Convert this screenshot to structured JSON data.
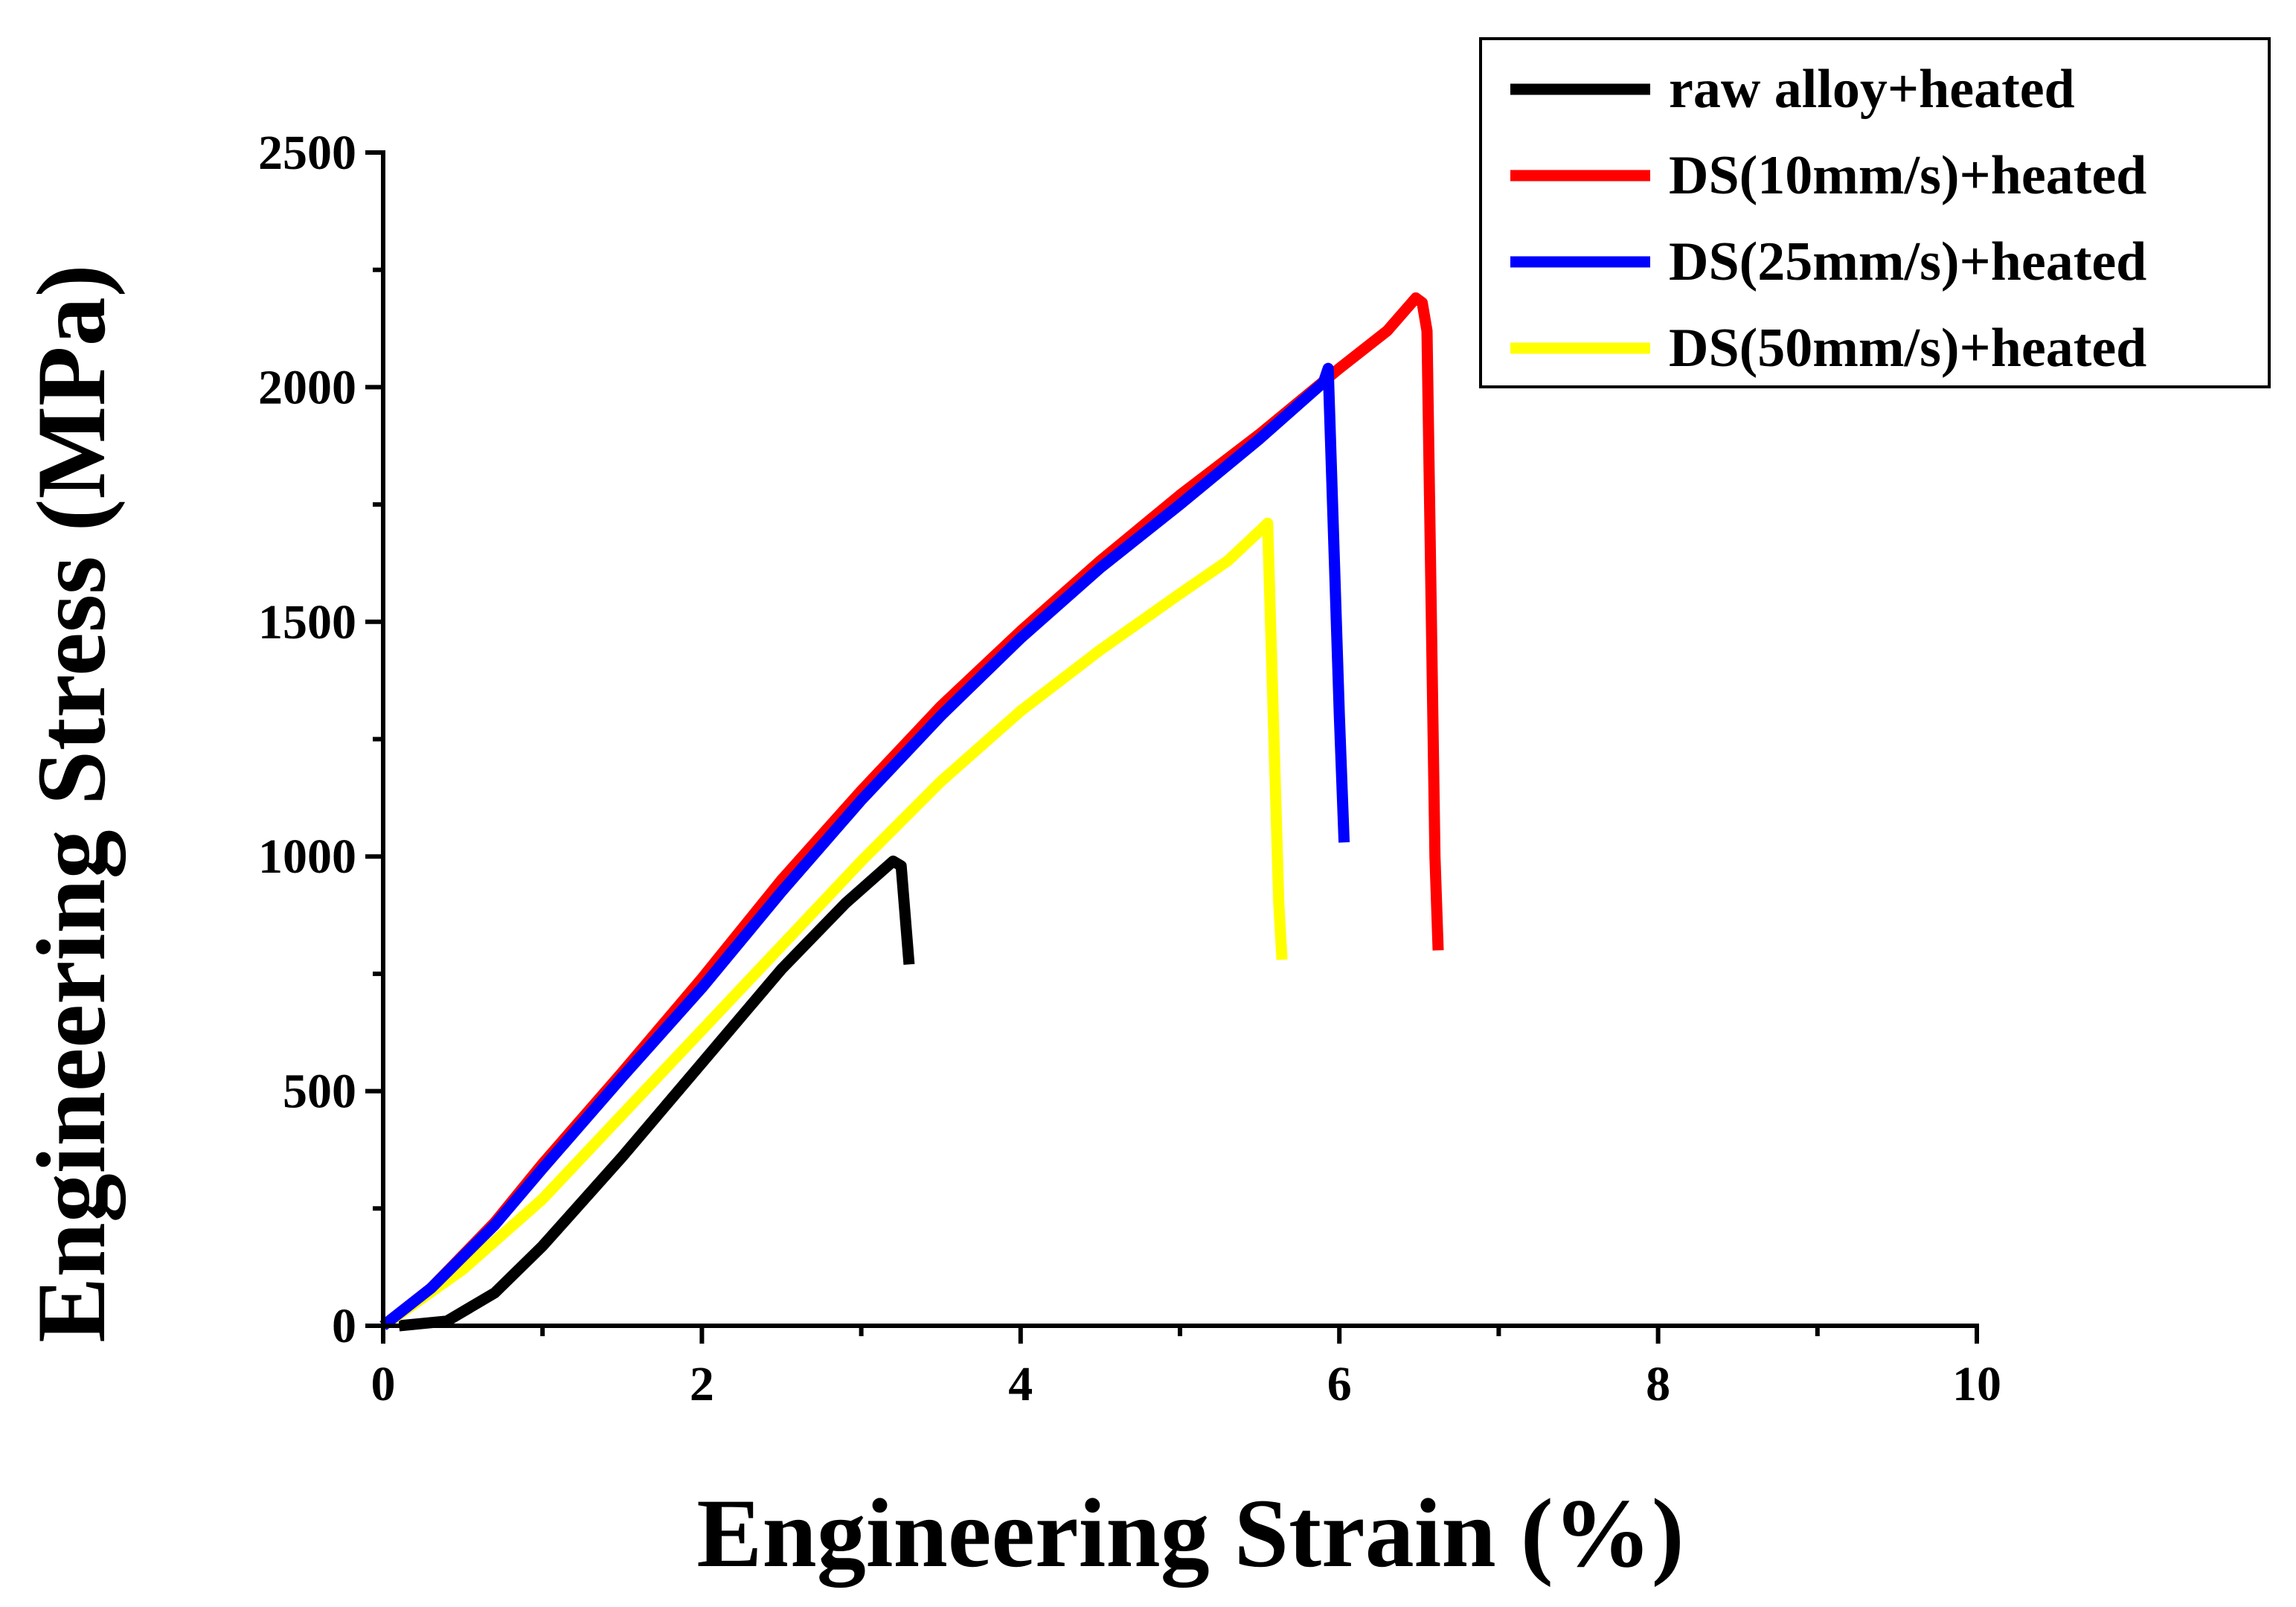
{
  "chart_data": {
    "type": "line",
    "title": "",
    "xlabel": "Engineering Strain (%)",
    "ylabel": "Engineering Stress (MPa)",
    "xlim": [
      0,
      10
    ],
    "ylim": [
      0,
      2500
    ],
    "xticks": [
      0,
      2,
      4,
      6,
      8,
      10
    ],
    "xtick_labels": [
      "0",
      "2",
      "4",
      "6",
      "8",
      "10"
    ],
    "yticks": [
      0,
      500,
      1000,
      1500,
      2000,
      2500
    ],
    "ytick_labels": [
      "0",
      "500",
      "1000",
      "1500",
      "2000",
      "2500"
    ],
    "grid": false,
    "legend_position": "top-right",
    "series": [
      {
        "name": "raw alloy+heated",
        "color": "#000000",
        "x": [
          0.1,
          0.4,
          0.7,
          1.0,
          1.5,
          2.0,
          2.5,
          2.9,
          3.2,
          3.25,
          3.3
        ],
        "y": [
          0,
          10,
          70,
          170,
          360,
          560,
          760,
          900,
          990,
          980,
          770
        ]
      },
      {
        "name": "DS(10mm/s)+heated",
        "color": "#ff0000",
        "x": [
          0.0,
          0.3,
          0.7,
          1.0,
          1.5,
          2.0,
          2.5,
          3.0,
          3.5,
          4.0,
          4.5,
          5.0,
          5.5,
          6.0,
          6.3,
          6.48,
          6.52,
          6.55,
          6.6,
          6.62
        ],
        "y": [
          0,
          80,
          220,
          345,
          540,
          740,
          950,
          1140,
          1320,
          1480,
          1630,
          1770,
          1900,
          2040,
          2120,
          2190,
          2180,
          2120,
          1000,
          800
        ]
      },
      {
        "name": "DS(25mm/s)+heated",
        "color": "#0000ff",
        "x": [
          0.0,
          0.3,
          0.7,
          1.0,
          1.5,
          2.0,
          2.5,
          3.0,
          3.5,
          4.0,
          4.5,
          5.0,
          5.5,
          5.9,
          5.93,
          6.0,
          6.03
        ],
        "y": [
          0,
          80,
          215,
          335,
          530,
          720,
          925,
          1120,
          1300,
          1465,
          1615,
          1750,
          1890,
          2010,
          2040,
          1300,
          1030
        ]
      },
      {
        "name": "DS(50mm/s)+heated",
        "color": "#ffff00",
        "x": [
          0.0,
          0.5,
          1.0,
          1.5,
          2.0,
          2.5,
          3.0,
          3.5,
          4.0,
          4.5,
          5.0,
          5.3,
          5.52,
          5.55,
          5.62,
          5.64
        ],
        "y": [
          0,
          120,
          270,
          450,
          630,
          810,
          990,
          1160,
          1310,
          1440,
          1560,
          1630,
          1700,
          1710,
          900,
          780
        ]
      }
    ]
  }
}
